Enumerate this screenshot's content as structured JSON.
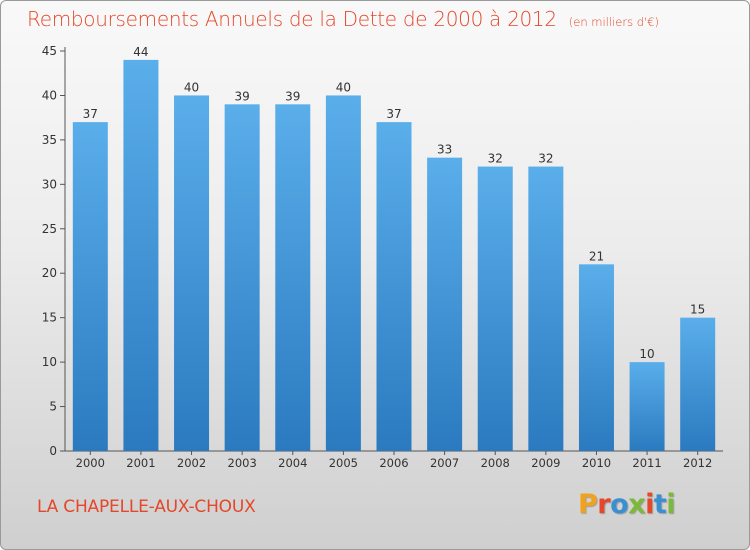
{
  "title": "Remboursements Annuels de la Dette de 2000 à 2012",
  "subtitle": "(en milliers d'€)",
  "commune": "LA CHAPELLE-AUX-CHOUX",
  "logo_text": "Proxiti",
  "logo_colors": [
    "#f0a21f",
    "#e4472a",
    "#3a8fd0",
    "#7cb93a",
    "#e4472a",
    "#3a8fd0",
    "#7cb93a"
  ],
  "colors": {
    "title": "#e4472a",
    "bar_light": "#5aaeea",
    "bar_dark": "#2b7ac0"
  },
  "chart_data": {
    "type": "bar",
    "categories": [
      "2000",
      "2001",
      "2002",
      "2003",
      "2004",
      "2005",
      "2006",
      "2007",
      "2008",
      "2009",
      "2010",
      "2011",
      "2012"
    ],
    "values": [
      37,
      44,
      40,
      39,
      39,
      40,
      37,
      33,
      32,
      32,
      21,
      10,
      15
    ],
    "data_labels": [
      "37",
      "44",
      "40",
      "39",
      "39",
      "40",
      "37",
      "33",
      "32",
      "32",
      "21",
      "10",
      "15"
    ],
    "y_ticks": [
      0,
      5,
      10,
      15,
      20,
      25,
      30,
      35,
      40,
      45
    ],
    "ylim": [
      0,
      45
    ],
    "xlabel": "",
    "ylabel": "",
    "grid": false,
    "legend": "none"
  }
}
